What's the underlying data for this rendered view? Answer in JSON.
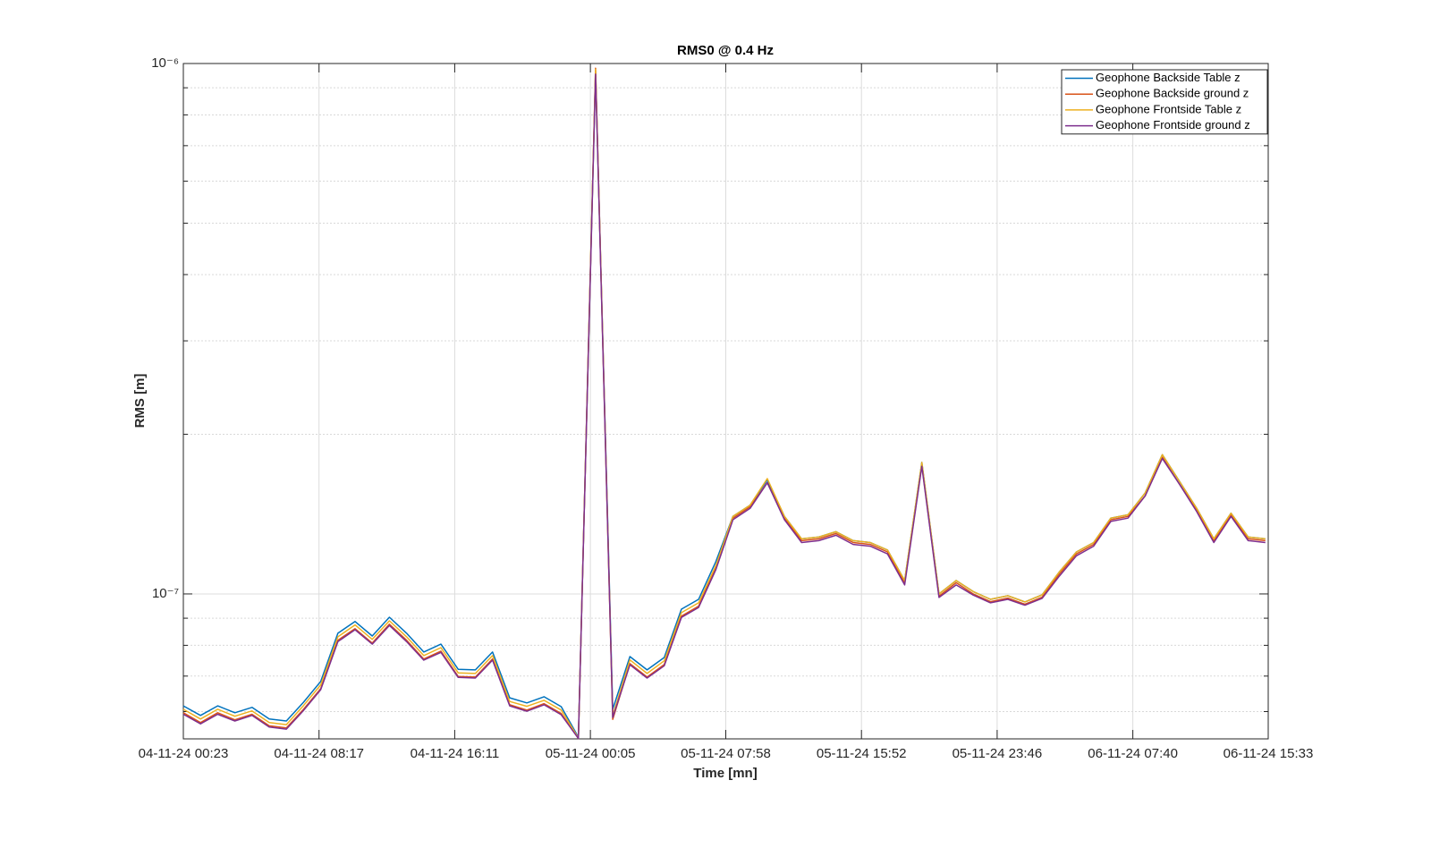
{
  "chart_data": {
    "type": "line",
    "title": "RMS0 @ 0.4 Hz",
    "xlabel": "Time [mn]",
    "ylabel": "RMS [m]",
    "log_y": true,
    "grid": true,
    "minor_grid": true,
    "legend": "northeast",
    "xlim": [
      "04-11-24 00:23",
      "06-11-24 15:33"
    ],
    "xticks": [
      "04-11-24 00:23",
      "04-11-24 08:17",
      "04-11-24 16:11",
      "05-11-24 00:05",
      "05-11-24 07:58",
      "05-11-24 15:52",
      "05-11-24 23:46",
      "06-11-24 07:40",
      "06-11-24 15:33"
    ],
    "ylim": [
      5.33e-08,
      1e-06
    ],
    "yticks": [
      {
        "value": 1e-07,
        "label": "10⁻⁷"
      },
      {
        "value": 1e-06,
        "label": "10⁻⁶"
      }
    ],
    "yminorticks": [
      6e-08,
      7e-08,
      8e-08,
      9e-08,
      2e-07,
      3e-07,
      4e-07,
      5e-07,
      6e-07,
      7e-07,
      8e-07,
      9e-07
    ],
    "x": [
      "04-11-24 00:23",
      "04-11-24 01:23",
      "04-11-24 02:23",
      "04-11-24 03:23",
      "04-11-24 04:23",
      "04-11-24 05:23",
      "04-11-24 06:23",
      "04-11-24 07:23",
      "04-11-24 08:23",
      "04-11-24 09:23",
      "04-11-24 10:23",
      "04-11-24 11:23",
      "04-11-24 12:23",
      "04-11-24 13:23",
      "04-11-24 14:23",
      "04-11-24 15:23",
      "04-11-24 16:23",
      "04-11-24 17:23",
      "04-11-24 18:23",
      "04-11-24 19:23",
      "04-11-24 20:23",
      "04-11-24 21:23",
      "04-11-24 22:23",
      "04-11-24 23:23",
      "05-11-24 00:23",
      "05-11-24 01:23",
      "05-11-24 02:23",
      "05-11-24 03:23",
      "05-11-24 04:23",
      "05-11-24 05:23",
      "05-11-24 06:23",
      "05-11-24 07:23",
      "05-11-24 08:23",
      "05-11-24 09:23",
      "05-11-24 10:23",
      "05-11-24 11:23",
      "05-11-24 12:23",
      "05-11-24 13:23",
      "05-11-24 14:23",
      "05-11-24 15:23",
      "05-11-24 16:23",
      "05-11-24 17:23",
      "05-11-24 18:23",
      "05-11-24 19:23",
      "05-11-24 20:23",
      "05-11-24 21:23",
      "05-11-24 22:23",
      "05-11-24 23:23",
      "06-11-24 00:23",
      "06-11-24 01:23",
      "06-11-24 02:23",
      "06-11-24 03:23",
      "06-11-24 04:23",
      "06-11-24 05:23",
      "06-11-24 06:23",
      "06-11-24 07:23",
      "06-11-24 08:23",
      "06-11-24 09:23",
      "06-11-24 10:23",
      "06-11-24 11:23",
      "06-11-24 12:23",
      "06-11-24 13:23",
      "06-11-24 14:23",
      "06-11-24 15:23"
    ],
    "series": [
      {
        "name": "Geophone Backside Table z",
        "color": "#0072BD",
        "values": [
          6.15e-08,
          5.9e-08,
          6.15e-08,
          5.97e-08,
          6.11e-08,
          5.81e-08,
          5.76e-08,
          6.25e-08,
          6.84e-08,
          8.43e-08,
          8.87e-08,
          8.33e-08,
          9.04e-08,
          8.43e-08,
          7.77e-08,
          8.04e-08,
          7.21e-08,
          7.19e-08,
          7.77e-08,
          6.37e-08,
          6.23e-08,
          6.4e-08,
          6.13e-08,
          5.37e-08,
          9.66e-07,
          6.06e-08,
          7.62e-08,
          7.19e-08,
          7.59e-08,
          9.36e-08,
          9.77e-08,
          1.15e-07,
          1.4e-07,
          1.47e-07,
          1.64e-07,
          1.4e-07,
          1.27e-07,
          1.28e-07,
          1.31e-07,
          1.26e-07,
          1.25e-07,
          1.21e-07,
          1.06e-07,
          1.77e-07,
          1e-07,
          1.06e-07,
          1.01e-07,
          9.77e-08,
          9.92e-08,
          9.66e-08,
          9.96e-08,
          1.1e-07,
          1.2e-07,
          1.25e-07,
          1.39e-07,
          1.41e-07,
          1.55e-07,
          1.83e-07,
          1.63e-07,
          1.45e-07,
          1.27e-07,
          1.42e-07,
          1.28e-07,
          1.27e-07
        ]
      },
      {
        "name": "Geophone Backside ground z",
        "color": "#D95319",
        "values": [
          5.97e-08,
          5.72e-08,
          5.97e-08,
          5.79e-08,
          5.93e-08,
          5.64e-08,
          5.59e-08,
          6.06e-08,
          6.63e-08,
          8.18e-08,
          8.6e-08,
          8.08e-08,
          8.77e-08,
          8.18e-08,
          7.54e-08,
          7.8e-08,
          6.99e-08,
          6.97e-08,
          7.54e-08,
          6.18e-08,
          6.04e-08,
          6.21e-08,
          5.95e-08,
          5.34e-08,
          9.8e-07,
          5.8e-08,
          7.39e-08,
          6.97e-08,
          7.36e-08,
          9.08e-08,
          9.48e-08,
          1.12e-07,
          1.39e-07,
          1.46e-07,
          1.62e-07,
          1.39e-07,
          1.26e-07,
          1.27e-07,
          1.3e-07,
          1.25e-07,
          1.24e-07,
          1.2e-07,
          1.05e-07,
          1.75e-07,
          9.9e-08,
          1.05e-07,
          1e-07,
          9.67e-08,
          9.82e-08,
          9.56e-08,
          9.86e-08,
          1.09e-07,
          1.19e-07,
          1.24e-07,
          1.38e-07,
          1.4e-07,
          1.53e-07,
          1.81e-07,
          1.61e-07,
          1.44e-07,
          1.26e-07,
          1.41e-07,
          1.27e-07,
          1.26e-07
        ]
      },
      {
        "name": "Geophone Frontside Table z",
        "color": "#EDB120",
        "values": [
          6.06e-08,
          5.81e-08,
          6.06e-08,
          5.88e-08,
          6.02e-08,
          5.72e-08,
          5.67e-08,
          6.16e-08,
          6.74e-08,
          8.3e-08,
          8.74e-08,
          8.21e-08,
          8.9e-08,
          8.3e-08,
          7.65e-08,
          7.92e-08,
          7.1e-08,
          7.08e-08,
          7.65e-08,
          6.27e-08,
          6.14e-08,
          6.3e-08,
          6.04e-08,
          5.35e-08,
          9.75e-07,
          5.9e-08,
          7.51e-08,
          7.08e-08,
          7.48e-08,
          9.22e-08,
          9.62e-08,
          1.13e-07,
          1.4e-07,
          1.47e-07,
          1.65e-07,
          1.4e-07,
          1.27e-07,
          1.28e-07,
          1.31e-07,
          1.26e-07,
          1.25e-07,
          1.21e-07,
          1.06e-07,
          1.77e-07,
          1e-07,
          1.06e-07,
          1.01e-07,
          9.77e-08,
          9.92e-08,
          9.66e-08,
          9.96e-08,
          1.1e-07,
          1.2e-07,
          1.25e-07,
          1.39e-07,
          1.41e-07,
          1.55e-07,
          1.83e-07,
          1.63e-07,
          1.45e-07,
          1.27e-07,
          1.42e-07,
          1.28e-07,
          1.27e-07
        ]
      },
      {
        "name": "Geophone Frontside ground z",
        "color": "#7E2F8E",
        "values": [
          5.93e-08,
          5.69e-08,
          5.93e-08,
          5.76e-08,
          5.9e-08,
          5.61e-08,
          5.56e-08,
          6.03e-08,
          6.6e-08,
          8.13e-08,
          8.56e-08,
          8.04e-08,
          8.72e-08,
          8.13e-08,
          7.5e-08,
          7.76e-08,
          6.96e-08,
          6.94e-08,
          7.5e-08,
          6.15e-08,
          6.01e-08,
          6.18e-08,
          5.92e-08,
          5.34e-08,
          9.55e-07,
          5.85e-08,
          7.35e-08,
          6.94e-08,
          7.32e-08,
          9.03e-08,
          9.43e-08,
          1.11e-07,
          1.38e-07,
          1.45e-07,
          1.62e-07,
          1.38e-07,
          1.25e-07,
          1.26e-07,
          1.29e-07,
          1.24e-07,
          1.23e-07,
          1.19e-07,
          1.04e-07,
          1.74e-07,
          9.85e-08,
          1.04e-07,
          9.95e-08,
          9.62e-08,
          9.77e-08,
          9.52e-08,
          9.81e-08,
          1.08e-07,
          1.18e-07,
          1.23e-07,
          1.37e-07,
          1.39e-07,
          1.53e-07,
          1.8e-07,
          1.61e-07,
          1.43e-07,
          1.25e-07,
          1.4e-07,
          1.26e-07,
          1.25e-07
        ]
      }
    ]
  }
}
